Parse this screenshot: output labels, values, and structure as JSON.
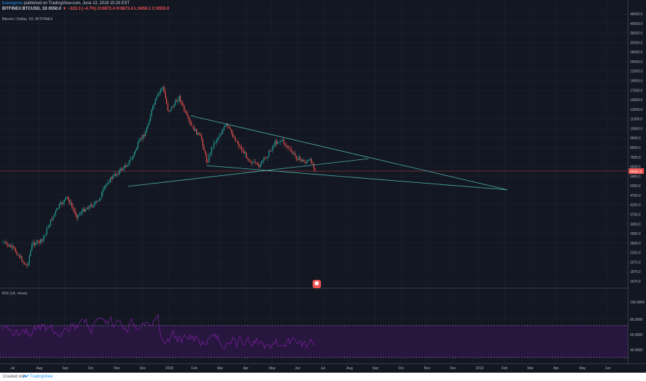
{
  "header": {
    "author": "bravegenei",
    "published": "published on TradingView.com, June 12, 2018 15:28 EST",
    "symbol": "BITFINEX:BTCUSD, 1D",
    "last": "6550.0",
    "change": "▼ −323.3 (−4.7%)",
    "ohlc": "O:6873.4 H:6873.4 L:6456.1 C:6550.0"
  },
  "main_pane": {
    "title": "Bitcoin / Dollar, 1D, BITFINEX",
    "price_labels": [
      "46000.0",
      "40000.0",
      "36000.0",
      "32000.0",
      "28000.0",
      "25000.0",
      "22000.0",
      "19000.0",
      "17000.0",
      "15000.0",
      "13000.0",
      "11000.0",
      "10500.0",
      "9500.0",
      "8500.0",
      "7500.0",
      "6500.0",
      "5900.0",
      "5300.0",
      "4700.0",
      "4200.0",
      "3700.0",
      "3300.0",
      "2900.0",
      "2600.0",
      "2320.0",
      "2070.0",
      "1870.0",
      "1670.0"
    ],
    "current_price_tag": "6550.0"
  },
  "rsi_pane": {
    "title": "RSI (14, close)",
    "labels": [
      "100.0000",
      "80.0000",
      "60.0000",
      "40.0000"
    ]
  },
  "time_axis": [
    "Jul",
    "Aug",
    "Sep",
    "Oct",
    "Nov",
    "Dec",
    "2018",
    "Feb",
    "Mar",
    "Apr",
    "May",
    "Jun",
    "Jul",
    "Aug",
    "Sep",
    "Oct",
    "Nov",
    "Dec",
    "2019",
    "Feb",
    "Mar",
    "Apr",
    "May",
    "Jun"
  ],
  "footer": {
    "created": "Created with",
    "brand": "TradingView"
  },
  "colors": {
    "background": "#131722",
    "up": "#26a69a",
    "down": "#ef5350",
    "trendline": "#4db6ac",
    "rsi_line": "#7b1fa2",
    "rsi_band": "#2a1640"
  }
}
